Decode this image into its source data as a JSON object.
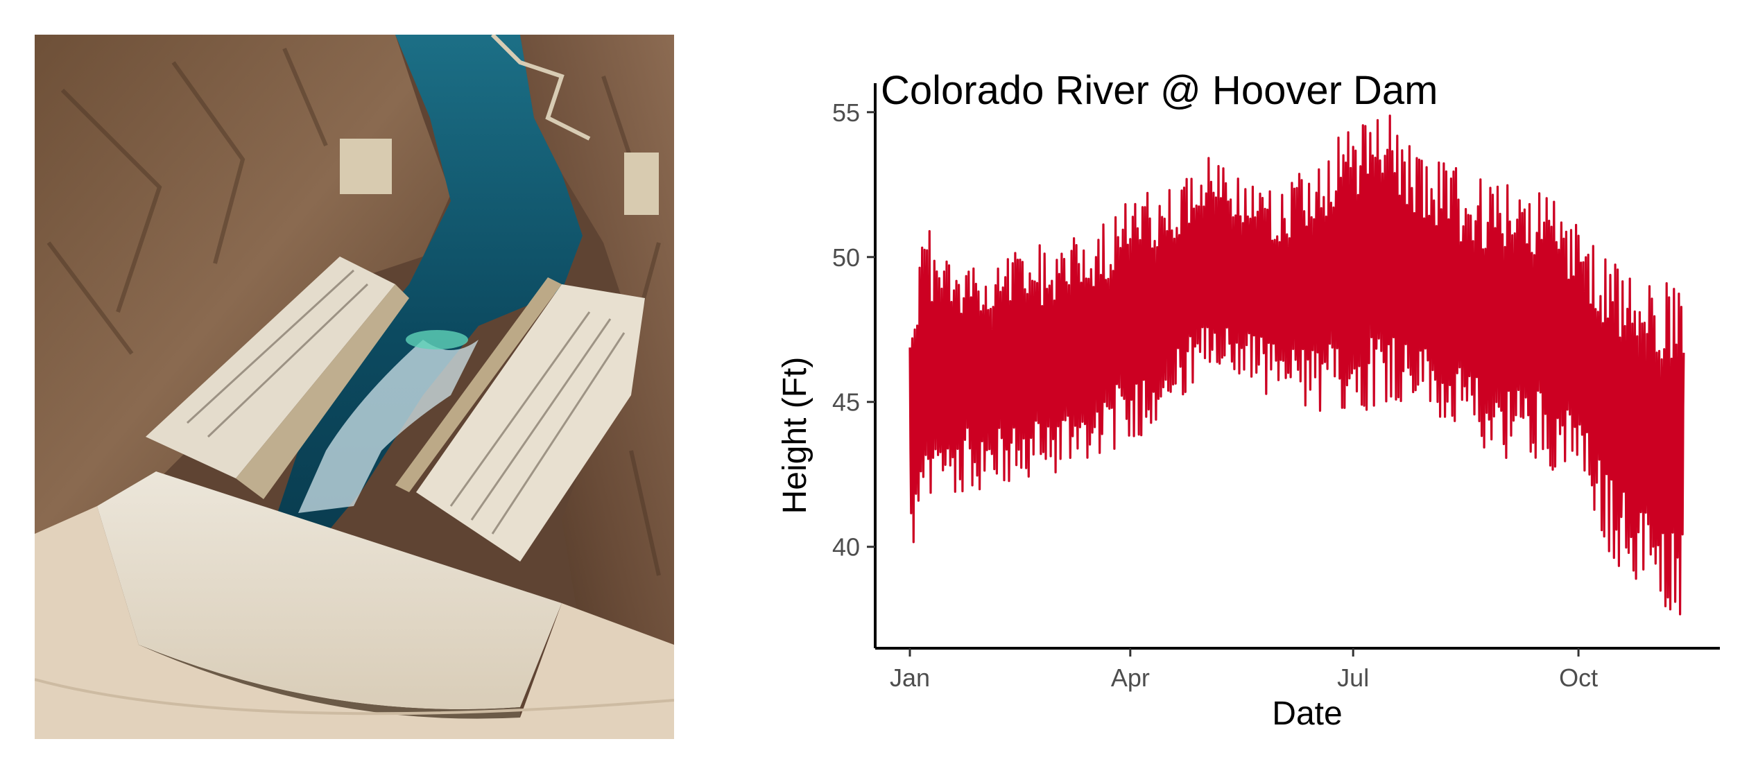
{
  "photo": {
    "subject": "hoover-dam-aerial-photo",
    "colors": {
      "rock": "#7a5a42",
      "water": "#0e4f66",
      "concrete": "#e6ded0",
      "shadow": "#3b2a20"
    }
  },
  "chart_data": {
    "type": "line",
    "title": "Colorado River @ Hoover Dam",
    "xlabel": "Date",
    "ylabel": "Height (Ft)",
    "x_ticks": [
      "Jan",
      "Apr",
      "Jul",
      "Oct"
    ],
    "x_tick_dates": [
      "2018-01-01",
      "2018-04-01",
      "2018-07-01",
      "2018-10-01"
    ],
    "x_range": [
      "2018-01-01",
      "2018-11-15"
    ],
    "y_ticks": [
      40,
      45,
      50,
      55
    ],
    "ylim": [
      36.5,
      56
    ],
    "grid": false,
    "legend": "none",
    "series": [
      {
        "color": "#cc0022",
        "envelope_dates": [
          "2018-01-01",
          "2018-01-08",
          "2018-01-15",
          "2018-02-01",
          "2018-02-15",
          "2018-03-01",
          "2018-03-15",
          "2018-04-01",
          "2018-04-15",
          "2018-05-01",
          "2018-05-15",
          "2018-06-01",
          "2018-06-15",
          "2018-07-01",
          "2018-07-15",
          "2018-08-01",
          "2018-08-15",
          "2018-09-01",
          "2018-09-15",
          "2018-10-01",
          "2018-10-15",
          "2018-11-01",
          "2018-11-13"
        ],
        "daily_min": [
          39.5,
          40.5,
          41.8,
          42.0,
          42.0,
          42.5,
          43.0,
          43.5,
          44.5,
          45.5,
          45.8,
          45.0,
          44.5,
          44.5,
          45.0,
          44.5,
          43.5,
          43.0,
          43.0,
          42.0,
          39.5,
          38.0,
          37.5
        ],
        "daily_max": [
          48.5,
          51.5,
          50.5,
          49.5,
          50.5,
          50.5,
          51.0,
          52.0,
          52.5,
          53.5,
          53.0,
          52.5,
          53.5,
          54.5,
          55.0,
          53.5,
          53.0,
          52.5,
          52.5,
          51.5,
          50.0,
          49.5,
          48.8
        ]
      }
    ]
  }
}
